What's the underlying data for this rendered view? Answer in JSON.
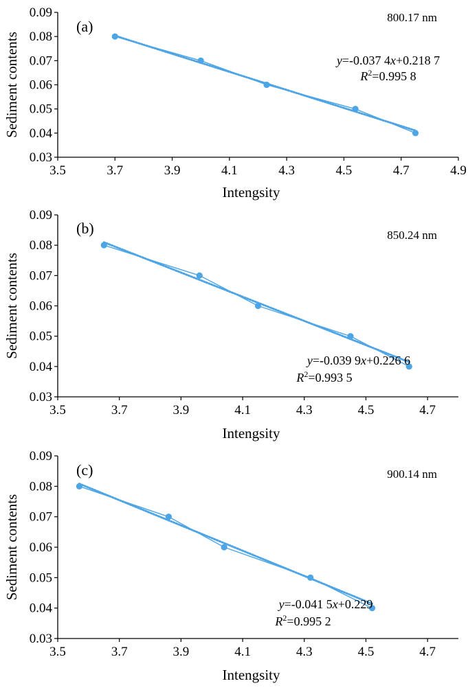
{
  "chart_data": [
    {
      "type": "scatter",
      "panel_label": "(a)",
      "wavelength_label": "800.17 nm",
      "xlabel": "Intengsity",
      "ylabel": "Sediment contents",
      "xlim": [
        3.5,
        4.9
      ],
      "ylim": [
        0.03,
        0.09
      ],
      "xticks": [
        "3.5",
        "3.7",
        "3.9",
        "4.1",
        "4.3",
        "4.5",
        "4.7",
        "4.9"
      ],
      "yticks": [
        "0.03",
        "0.04",
        "0.05",
        "0.06",
        "0.07",
        "0.08",
        "0.09"
      ],
      "grid": false,
      "color": "#4ea5e6",
      "series": [
        {
          "x": [
            3.7,
            4.0,
            4.23,
            4.54,
            4.75
          ],
          "y": [
            0.08,
            0.07,
            0.06,
            0.05,
            0.04
          ]
        }
      ],
      "trendline": {
        "slope": -0.0374,
        "intercept": 0.2187,
        "style": "dotted"
      },
      "equation": {
        "y_prefix": "y",
        "rest": "=-0.037 4",
        "x_var": "x",
        "tail": "+0.218 7"
      },
      "r2": {
        "r": "R",
        "sup": "2",
        "value": "=0.995 8"
      }
    },
    {
      "type": "scatter",
      "panel_label": "(b)",
      "wavelength_label": "850.24 nm",
      "xlabel": "Intengsity",
      "ylabel": "Sediment contents",
      "xlim": [
        3.5,
        4.8
      ],
      "ylim": [
        0.03,
        0.09
      ],
      "xticks": [
        "3.5",
        "3.7",
        "3.9",
        "4.1",
        "4.3",
        "4.5",
        "4.7"
      ],
      "yticks": [
        "0.03",
        "0.04",
        "0.05",
        "0.06",
        "0.07",
        "0.08",
        "0.09"
      ],
      "grid": false,
      "color": "#4ea5e6",
      "series": [
        {
          "x": [
            3.65,
            3.96,
            4.15,
            4.45,
            4.64
          ],
          "y": [
            0.08,
            0.07,
            0.06,
            0.05,
            0.04
          ]
        }
      ],
      "trendline": {
        "slope": -0.0399,
        "intercept": 0.2266,
        "style": "dotted"
      },
      "equation": {
        "y_prefix": "y",
        "rest": "=-0.039 9",
        "x_var": "x",
        "tail": "+0.226 6"
      },
      "r2": {
        "r": "R",
        "sup": "2",
        "value": "=0.993 5"
      }
    },
    {
      "type": "scatter",
      "panel_label": "(c)",
      "wavelength_label": "900.14 nm",
      "xlabel": "Intengsity",
      "ylabel": "Sediment contents",
      "xlim": [
        3.5,
        4.8
      ],
      "ylim": [
        0.03,
        0.09
      ],
      "xticks": [
        "3.5",
        "3.7",
        "3.9",
        "4.1",
        "4.3",
        "4.5",
        "4.7"
      ],
      "yticks": [
        "0.03",
        "0.04",
        "0.05",
        "0.06",
        "0.07",
        "0.08",
        "0.09"
      ],
      "grid": false,
      "color": "#4ea5e6",
      "series": [
        {
          "x": [
            3.57,
            3.86,
            4.04,
            4.32,
            4.52
          ],
          "y": [
            0.08,
            0.07,
            0.06,
            0.05,
            0.04
          ]
        }
      ],
      "trendline": {
        "slope": -0.0415,
        "intercept": 0.229,
        "style": "dotted"
      },
      "equation": {
        "y_prefix": "y",
        "rest": "=-0.041 5",
        "x_var": "x",
        "tail": "+0.229"
      },
      "r2": {
        "r": "R",
        "sup": "2",
        "value": "=0.995 2"
      }
    }
  ]
}
